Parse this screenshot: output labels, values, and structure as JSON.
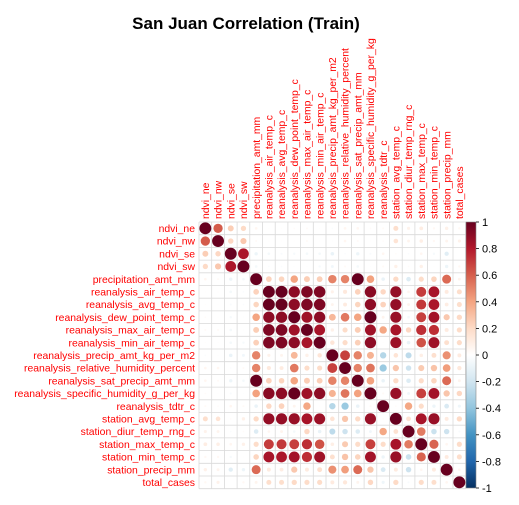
{
  "chart_data": {
    "type": "heatmap",
    "title": "San Juan Correlation (Train)",
    "label_color": "#ff0000",
    "variables": [
      "ndvi_ne",
      "ndvi_nw",
      "ndvi_se",
      "ndvi_sw",
      "precipitation_amt_mm",
      "reanalysis_air_temp_c",
      "reanalysis_avg_temp_c",
      "reanalysis_dew_point_temp_c",
      "reanalysis_max_air_temp_c",
      "reanalysis_min_air_temp_c",
      "reanalysis_precip_amt_kg_per_m2",
      "reanalysis_relative_humidity_percent",
      "reanalysis_sat_precip_amt_mm",
      "reanalysis_specific_humidity_g_per_kg",
      "reanalysis_tdtr_c",
      "station_avg_temp_c",
      "station_diur_temp_rng_c",
      "station_max_temp_c",
      "station_min_temp_c",
      "station_precip_mm",
      "total_cases"
    ],
    "matrix": [
      [
        1.0,
        0.61,
        0.25,
        0.2,
        0.05,
        0.01,
        0.01,
        0.02,
        0.03,
        0.01,
        -0.02,
        0.05,
        0.05,
        0.02,
        0.03,
        0.18,
        0.07,
        0.1,
        0.04,
        0.08,
        0.04
      ],
      [
        0.61,
        1.0,
        0.21,
        0.27,
        0.03,
        0.01,
        0.01,
        0.01,
        0.03,
        0.01,
        -0.01,
        0.05,
        0.03,
        0.01,
        0.02,
        0.15,
        0.06,
        0.09,
        0.04,
        0.06,
        0.07
      ],
      [
        0.25,
        0.21,
        1.0,
        0.82,
        -0.08,
        -0.05,
        -0.03,
        -0.04,
        -0.05,
        -0.05,
        -0.09,
        -0.02,
        -0.08,
        -0.03,
        0.05,
        0.02,
        -0.02,
        0.05,
        -0.04,
        -0.13,
        -0.0
      ],
      [
        0.2,
        0.27,
        0.82,
        1.0,
        -0.05,
        -0.02,
        -0.02,
        -0.01,
        -0.01,
        -0.04,
        -0.06,
        0.03,
        -0.05,
        -0.01,
        0.03,
        0.08,
        0.02,
        0.08,
        0.01,
        -0.08,
        0.04
      ],
      [
        0.05,
        0.03,
        -0.08,
        -0.05,
        1.0,
        0.23,
        0.22,
        0.4,
        0.25,
        0.24,
        0.5,
        0.5,
        1.0,
        0.41,
        -0.09,
        0.2,
        -0.15,
        0.19,
        0.22,
        0.57,
        0.06
      ],
      [
        0.01,
        0.01,
        -0.05,
        -0.02,
        0.23,
        1.0,
        1.0,
        0.9,
        0.94,
        0.94,
        0.07,
        0.12,
        0.23,
        0.91,
        0.21,
        0.88,
        0.05,
        0.7,
        0.83,
        0.11,
        0.18
      ],
      [
        0.01,
        0.01,
        -0.03,
        -0.02,
        0.22,
        1.0,
        1.0,
        0.9,
        0.94,
        0.94,
        0.06,
        0.11,
        0.22,
        0.9,
        0.23,
        0.88,
        0.06,
        0.71,
        0.82,
        0.1,
        0.18
      ],
      [
        0.02,
        0.01,
        -0.04,
        -0.01,
        0.4,
        0.9,
        0.9,
        1.0,
        0.85,
        0.9,
        0.33,
        0.53,
        0.4,
        1.0,
        0.06,
        0.87,
        -0.05,
        0.69,
        0.84,
        0.27,
        0.2
      ],
      [
        0.03,
        0.03,
        -0.05,
        -0.01,
        0.25,
        0.94,
        0.94,
        0.85,
        1.0,
        0.83,
        0.08,
        0.19,
        0.25,
        0.85,
        0.39,
        0.83,
        0.21,
        0.74,
        0.74,
        0.11,
        0.19
      ],
      [
        0.01,
        0.01,
        -0.05,
        -0.04,
        0.24,
        0.94,
        0.94,
        0.9,
        0.83,
        1.0,
        0.14,
        0.19,
        0.24,
        0.9,
        0.01,
        0.86,
        -0.09,
        0.64,
        0.85,
        0.17,
        0.19
      ],
      [
        -0.02,
        -0.01,
        -0.09,
        -0.06,
        0.5,
        0.07,
        0.06,
        0.33,
        0.08,
        0.14,
        1.0,
        0.69,
        0.5,
        0.35,
        -0.29,
        0.15,
        -0.26,
        0.09,
        0.17,
        0.46,
        0.11
      ],
      [
        0.05,
        0.05,
        -0.02,
        0.03,
        0.5,
        0.12,
        0.11,
        0.53,
        0.19,
        0.19,
        0.69,
        1.0,
        0.5,
        0.54,
        -0.37,
        0.28,
        -0.21,
        0.26,
        0.29,
        0.42,
        0.13
      ],
      [
        0.05,
        0.03,
        -0.08,
        -0.05,
        1.0,
        0.23,
        0.22,
        0.4,
        0.25,
        0.24,
        0.5,
        0.5,
        1.0,
        0.41,
        -0.09,
        0.2,
        -0.15,
        0.19,
        0.22,
        0.57,
        0.06
      ],
      [
        0.02,
        0.01,
        -0.03,
        -0.01,
        0.41,
        0.91,
        0.9,
        1.0,
        0.85,
        0.9,
        0.35,
        0.54,
        0.41,
        1.0,
        0.03,
        0.87,
        -0.06,
        0.69,
        0.84,
        0.28,
        0.21
      ],
      [
        0.03,
        0.02,
        0.05,
        0.03,
        -0.09,
        0.21,
        0.23,
        0.06,
        0.39,
        0.01,
        -0.29,
        -0.37,
        -0.09,
        0.03,
        1.0,
        0.02,
        0.39,
        0.19,
        -0.08,
        -0.16,
        -0.07
      ],
      [
        0.18,
        0.15,
        0.02,
        0.08,
        0.2,
        0.88,
        0.88,
        0.87,
        0.83,
        0.86,
        0.15,
        0.28,
        0.2,
        0.87,
        0.02,
        1.0,
        0.16,
        0.83,
        0.87,
        0.11,
        0.2
      ],
      [
        0.07,
        0.06,
        -0.02,
        0.02,
        -0.15,
        0.05,
        0.06,
        -0.05,
        0.21,
        -0.09,
        -0.26,
        -0.21,
        -0.15,
        -0.06,
        0.39,
        0.16,
        1.0,
        0.52,
        -0.22,
        -0.21,
        -0.03
      ],
      [
        0.1,
        0.09,
        0.05,
        0.08,
        0.19,
        0.7,
        0.71,
        0.69,
        0.74,
        0.64,
        0.09,
        0.26,
        0.19,
        0.69,
        0.19,
        0.83,
        0.52,
        1.0,
        0.59,
        0.05,
        0.19
      ],
      [
        0.04,
        0.04,
        -0.04,
        0.01,
        0.22,
        0.83,
        0.82,
        0.84,
        0.74,
        0.85,
        0.17,
        0.29,
        0.22,
        0.84,
        -0.08,
        0.87,
        -0.22,
        0.59,
        1.0,
        0.11,
        0.18
      ],
      [
        0.08,
        0.06,
        -0.13,
        -0.08,
        0.57,
        0.11,
        0.1,
        0.27,
        0.11,
        0.17,
        0.46,
        0.42,
        0.57,
        0.28,
        -0.16,
        0.11,
        -0.21,
        0.05,
        0.11,
        1.0,
        0.05
      ],
      [
        0.04,
        0.07,
        -0.0,
        0.04,
        0.06,
        0.18,
        0.18,
        0.2,
        0.19,
        0.19,
        0.11,
        0.13,
        0.06,
        0.21,
        -0.07,
        0.2,
        -0.03,
        0.19,
        0.18,
        0.05,
        1.0
      ]
    ],
    "colorbar": {
      "range": [
        -1,
        1
      ],
      "ticks": [
        "1",
        "0.8",
        "0.6",
        "0.4",
        "0.2",
        "0",
        "-0.2",
        "-0.4",
        "-0.6",
        "-0.8",
        "-1"
      ],
      "colors": [
        "#67001f",
        "#b2182b",
        "#d6604d",
        "#f4a582",
        "#fddbc7",
        "#ffffff",
        "#d1e5f0",
        "#92c5de",
        "#4393c3",
        "#2166ac",
        "#053061"
      ]
    },
    "grid": true,
    "legend": "right"
  }
}
